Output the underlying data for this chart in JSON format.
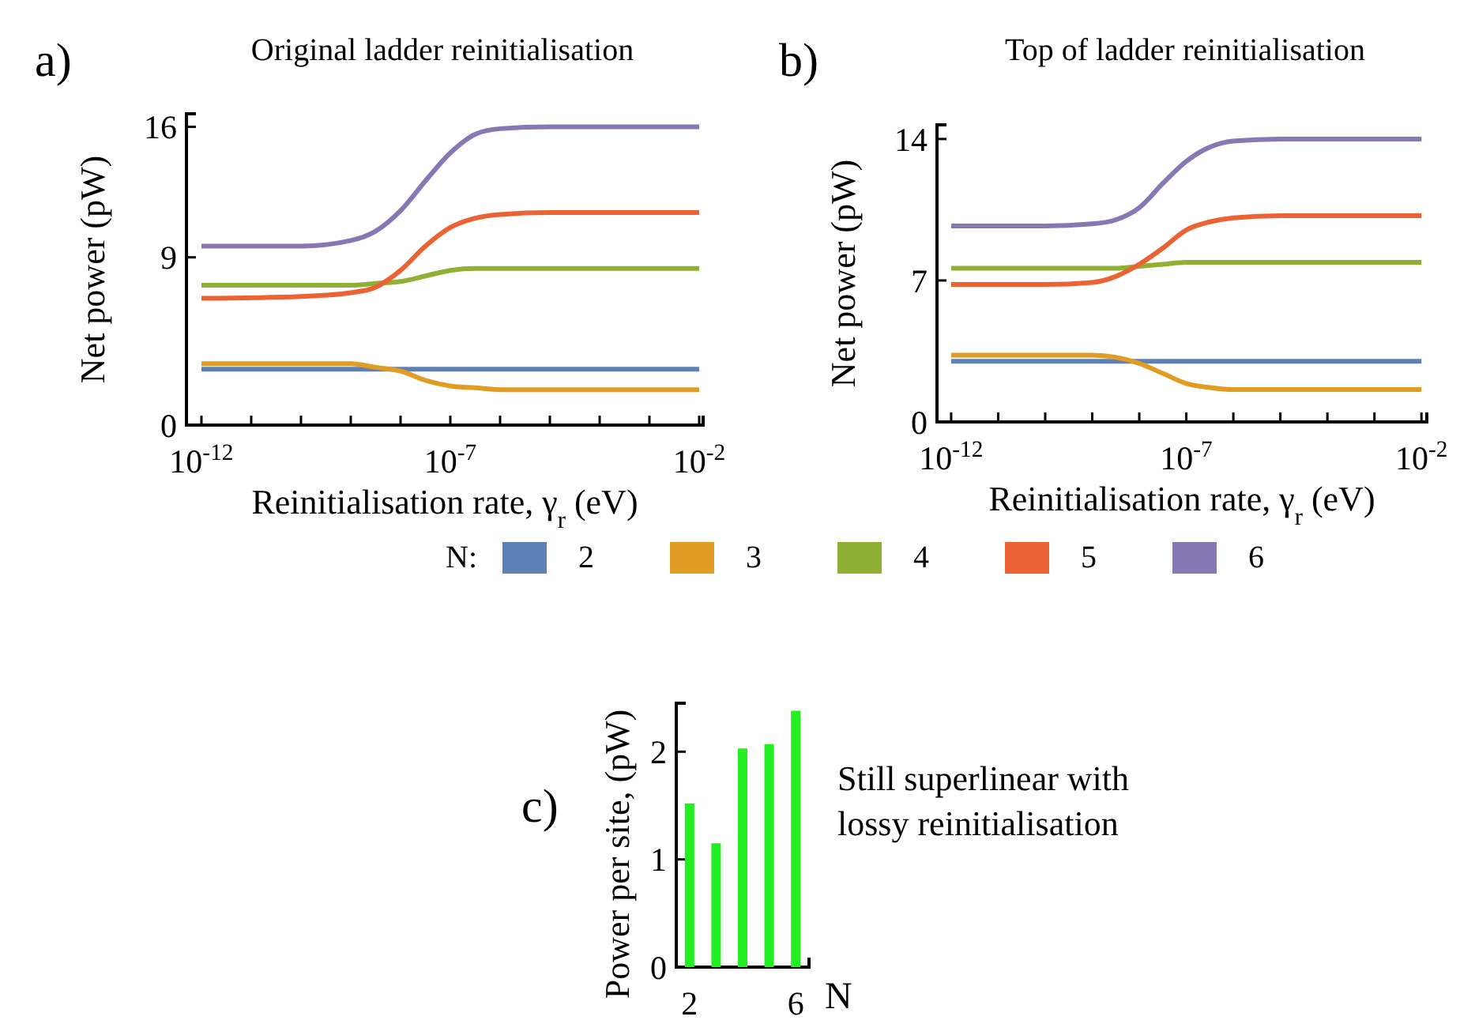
{
  "chart_data": [
    {
      "type": "line",
      "title": "Original ladder reinitialisation",
      "xlabel": "Reinitialisation rate, γ$_{r}$ (eV)",
      "ylabel": "Net power (pW)",
      "legend_title": "N:",
      "legend": "bottom",
      "log": "x",
      "annotations": [
        "a)"
      ],
      "x": [
        1e-12,
        1e-10,
        1e-09,
        3.16e-09,
        1e-08,
        3.16e-08,
        1e-07,
        3.16e-07,
        1e-06,
        1e-05,
        0.01
      ],
      "xlim": [
        5e-13,
        0.012
      ],
      "xticks": [
        {
          "value": 1e-12,
          "label": "10$^{-12}$"
        },
        {
          "value": 1e-11,
          "label": null
        },
        {
          "value": 1e-10,
          "label": null
        },
        {
          "value": 1e-09,
          "label": null
        },
        {
          "value": 1e-08,
          "label": null
        },
        {
          "value": 1e-07,
          "label": "10$^{-7}$"
        },
        {
          "value": 1e-06,
          "label": null
        },
        {
          "value": 1e-05,
          "label": null
        },
        {
          "value": 0.0001,
          "label": null
        },
        {
          "value": 0.001,
          "label": null
        },
        {
          "value": 0.01,
          "label": "10$^{-2}$"
        }
      ],
      "ylim": [
        0,
        16.7
      ],
      "yticks": [
        0,
        9,
        16
      ],
      "series": [
        {
          "name": "2",
          "color": "#5e81b5",
          "values": [
            3.0,
            3.0,
            3.0,
            3.0,
            3.0,
            3.0,
            3.0,
            3.0,
            3.0,
            3.0,
            3.0
          ]
        },
        {
          "name": "3",
          "color": "#e19c24",
          "values": [
            3.3,
            3.3,
            3.3,
            3.1,
            2.9,
            2.4,
            2.1,
            2.0,
            1.9,
            1.9,
            1.9
          ]
        },
        {
          "name": "4",
          "color": "#8fb032",
          "values": [
            7.5,
            7.5,
            7.5,
            7.6,
            7.7,
            8.0,
            8.3,
            8.4,
            8.4,
            8.4,
            8.4
          ]
        },
        {
          "name": "5",
          "color": "#eb6235",
          "values": [
            6.8,
            6.9,
            7.1,
            7.4,
            8.3,
            9.6,
            10.6,
            11.1,
            11.3,
            11.4,
            11.4
          ]
        },
        {
          "name": "6",
          "color": "#8778b3",
          "values": [
            9.6,
            9.6,
            9.9,
            10.4,
            11.5,
            13.1,
            14.6,
            15.6,
            15.9,
            16.0,
            16.0
          ]
        }
      ]
    },
    {
      "type": "line",
      "title": "Top of ladder reinitialisation",
      "xlabel": "Reinitialisation rate, γ$_{r}$ (eV)",
      "ylabel": "Net power (pW)",
      "log": "x",
      "annotations": [
        "b)"
      ],
      "x": [
        1e-12,
        1e-10,
        1e-09,
        3.16e-09,
        1e-08,
        3.16e-08,
        1e-07,
        3.16e-07,
        1e-06,
        1e-05,
        0.01
      ],
      "xlim": [
        5e-13,
        0.013
      ],
      "xticks": [
        {
          "value": 1e-12,
          "label": "10$^{-12}$"
        },
        {
          "value": 1e-11,
          "label": null
        },
        {
          "value": 1e-10,
          "label": null
        },
        {
          "value": 1e-09,
          "label": null
        },
        {
          "value": 1e-08,
          "label": null
        },
        {
          "value": 1e-07,
          "label": "10$^{-7}$"
        },
        {
          "value": 1e-06,
          "label": null
        },
        {
          "value": 1e-05,
          "label": null
        },
        {
          "value": 0.0001,
          "label": null
        },
        {
          "value": 0.001,
          "label": null
        },
        {
          "value": 0.01,
          "label": "10$^{-2}$"
        }
      ],
      "ylim": [
        0,
        14.7
      ],
      "yticks": [
        0,
        7,
        14
      ],
      "series": [
        {
          "color": "#5e81b5",
          "values": [
            3.0,
            3.0,
            3.0,
            3.0,
            3.0,
            3.0,
            3.0,
            3.0,
            3.0,
            3.0,
            3.0
          ]
        },
        {
          "color": "#e19c24",
          "values": [
            3.3,
            3.3,
            3.3,
            3.2,
            2.9,
            2.4,
            1.9,
            1.7,
            1.6,
            1.6,
            1.6
          ]
        },
        {
          "color": "#8fb032",
          "values": [
            7.6,
            7.6,
            7.6,
            7.6,
            7.7,
            7.8,
            7.9,
            7.9,
            7.9,
            7.9,
            7.9
          ]
        },
        {
          "color": "#eb6235",
          "values": [
            6.8,
            6.8,
            6.9,
            7.2,
            7.8,
            8.6,
            9.5,
            9.9,
            10.1,
            10.2,
            10.2
          ]
        },
        {
          "color": "#8778b3",
          "values": [
            9.7,
            9.7,
            9.8,
            10.0,
            10.6,
            11.8,
            12.9,
            13.6,
            13.9,
            14.0,
            14.0
          ]
        }
      ]
    },
    {
      "type": "bar",
      "xlabel": "N",
      "ylabel": "Power per site, (pW)",
      "annotations": [
        "c)",
        "Still superlinear with lossy reinitialisation"
      ],
      "x": [
        2,
        3,
        4,
        5,
        6
      ],
      "values": [
        1.52,
        1.15,
        2.03,
        2.07,
        2.38
      ],
      "color": "#22ee22",
      "xlim": [
        1.5,
        6.5
      ],
      "xticks": [
        2,
        6
      ],
      "ylim": [
        0,
        2.45
      ],
      "yticks": [
        0,
        1,
        2
      ]
    }
  ]
}
